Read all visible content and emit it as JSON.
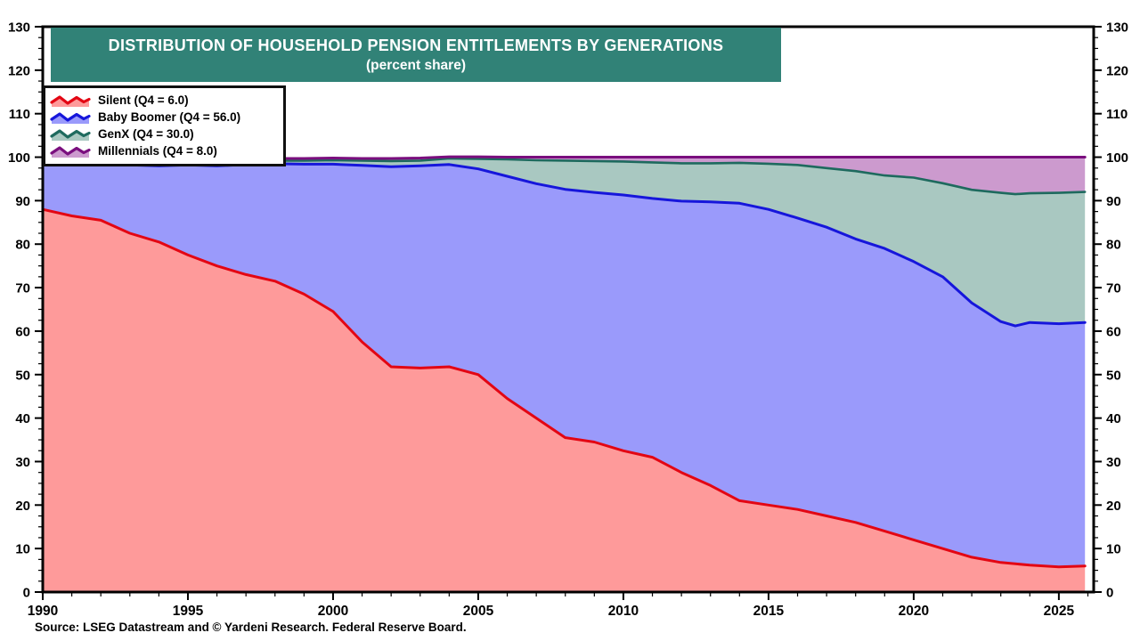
{
  "title": "DISTRIBUTION OF HOUSEHOLD PENSION ENTITLEMENTS BY GENERATIONS",
  "subtitle": "(percent share)",
  "source": "Source: LSEG Datastream and © Yardeni Research. Federal Reserve Board.",
  "banner_color": "#318277",
  "frame_color": "#000000",
  "chart_data": {
    "type": "area",
    "stacked": true,
    "title": "DISTRIBUTION OF HOUSEHOLD PENSION ENTITLEMENTS BY GENERATIONS",
    "subtitle": "(percent share)",
    "xlabel": "",
    "ylabel": "",
    "xlim": [
      1990,
      2026.2
    ],
    "ylim": [
      0,
      130
    ],
    "y_major_step": 10,
    "y_minor_step": 2.5,
    "x_major_step": 5,
    "x_minor_step": 1,
    "grid": false,
    "legend_position": "top-left",
    "y_tick_labels": [
      "0",
      "10",
      "20",
      "30",
      "40",
      "50",
      "60",
      "70",
      "80",
      "90",
      "100",
      "110",
      "120",
      "130"
    ],
    "x_tick_labels": [
      "1990",
      "1995",
      "2000",
      "2005",
      "2010",
      "2015",
      "2020",
      "2025"
    ],
    "x": [
      1990,
      1991,
      1992,
      1993,
      1994,
      1995,
      1996,
      1997,
      1998,
      1999,
      2000,
      2001,
      2002,
      2003,
      2004,
      2005,
      2006,
      2007,
      2008,
      2009,
      2010,
      2011,
      2012,
      2013,
      2014,
      2015,
      2016,
      2017,
      2018,
      2019,
      2020,
      2021,
      2022,
      2023,
      2023.5,
      2024,
      2025,
      2025.9
    ],
    "series": [
      {
        "name": "Silent",
        "legend": "Silent (Q4 = 6.0)",
        "q4_value": 6.0,
        "line_color": "#E30613",
        "fill_color": "#FE9A9A",
        "values": [
          88.0,
          86.5,
          85.5,
          82.5,
          80.5,
          77.5,
          75.0,
          73.0,
          71.5,
          68.5,
          64.5,
          57.5,
          51.8,
          51.5,
          51.8,
          50.0,
          44.5,
          40.0,
          35.5,
          34.5,
          32.5,
          31.0,
          27.5,
          24.5,
          21.0,
          20.0,
          19.0,
          17.5,
          16.0,
          14.0,
          12.0,
          10.0,
          8.0,
          6.8,
          6.5,
          6.2,
          5.8,
          6.0
        ]
      },
      {
        "name": "Baby Boomer",
        "legend": "Baby Boomer (Q4 = 56.0)",
        "q4_value": 56.0,
        "line_color": "#1616DB",
        "fill_color": "#9A9AFB",
        "values": [
          11.0,
          12.3,
          13.1,
          15.7,
          17.5,
          20.7,
          23.0,
          25.3,
          27.0,
          29.9,
          33.9,
          40.6,
          46.0,
          46.5,
          46.5,
          47.3,
          51.1,
          53.9,
          57.1,
          57.4,
          58.8,
          59.5,
          62.4,
          65.2,
          68.4,
          68.0,
          67.0,
          66.4,
          65.2,
          65.0,
          64.0,
          62.5,
          58.5,
          55.4,
          54.7,
          55.8,
          55.9,
          56.0
        ]
      },
      {
        "name": "GenX",
        "legend": "GenX (Q4 = 30.0)",
        "q4_value": 30.0,
        "line_color": "#1E6A5E",
        "fill_color": "#A9C8C1",
        "values": [
          0.5,
          0.6,
          0.7,
          1.0,
          1.1,
          0.9,
          1.1,
          0.9,
          0.7,
          0.8,
          0.9,
          1.1,
          1.3,
          1.2,
          1.4,
          2.3,
          3.9,
          5.4,
          6.6,
          7.2,
          7.7,
          8.3,
          8.7,
          8.9,
          9.3,
          10.5,
          12.2,
          13.6,
          15.6,
          16.8,
          19.3,
          21.5,
          26.0,
          29.6,
          30.3,
          29.7,
          30.1,
          30.0
        ]
      },
      {
        "name": "Millennials",
        "legend": "Millennials (Q4 = 8.0)",
        "q4_value": 8.0,
        "line_color": "#7A0E7E",
        "fill_color": "#CC9ACE",
        "values": [
          0.4,
          0.4,
          0.5,
          0.5,
          0.5,
          0.5,
          0.5,
          0.5,
          0.5,
          0.5,
          0.5,
          0.5,
          0.6,
          0.6,
          0.4,
          0.5,
          0.5,
          0.7,
          0.8,
          0.9,
          1.0,
          1.2,
          1.4,
          1.4,
          1.3,
          1.5,
          1.8,
          2.5,
          3.2,
          4.2,
          4.7,
          6.0,
          7.5,
          8.2,
          8.5,
          8.3,
          8.2,
          8.0
        ]
      }
    ]
  }
}
